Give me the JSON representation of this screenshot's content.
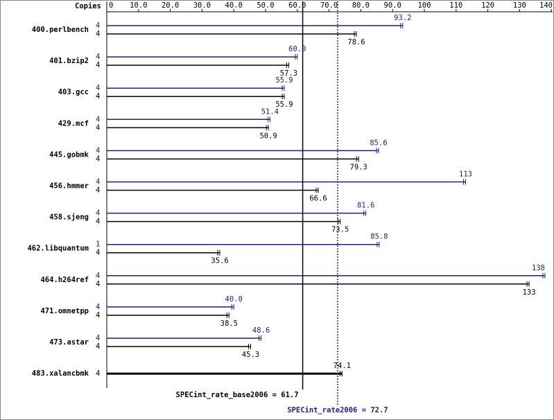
{
  "chart_data": {
    "type": "bar",
    "orientation": "horizontal",
    "copies_label": "Copies",
    "categories": [
      "400.perlbench",
      "401.bzip2",
      "403.gcc",
      "429.mcf",
      "445.gobmk",
      "456.hmmer",
      "458.sjeng",
      "462.libquantum",
      "464.h264ref",
      "471.omnetpp",
      "473.astar",
      "483.xalancbmk"
    ],
    "series": [
      {
        "color": "#1c1c8c",
        "copies": [
          4,
          4,
          4,
          4,
          4,
          4,
          4,
          1,
          4,
          4,
          4,
          null
        ],
        "values": [
          93.2,
          60.0,
          55.9,
          51.4,
          85.6,
          113,
          81.6,
          85.8,
          138,
          40.0,
          48.6,
          null
        ],
        "value_labels": [
          "93.2",
          "60.0",
          "55.9",
          "51.4",
          "85.6",
          "113",
          "81.6",
          "85.8",
          "138",
          "40.0",
          "48.6",
          null
        ]
      },
      {
        "color": "#000000",
        "copies": [
          4,
          4,
          4,
          4,
          4,
          4,
          4,
          4,
          4,
          4,
          4,
          4
        ],
        "values": [
          78.6,
          57.3,
          55.9,
          50.9,
          79.3,
          66.6,
          73.5,
          35.6,
          133,
          38.5,
          45.3,
          74.1
        ],
        "value_labels": [
          "78.6",
          "57.3",
          "55.9",
          "50.9",
          "79.3",
          "66.6",
          "73.5",
          "35.6",
          "133",
          "38.5",
          "45.3",
          "74.1"
        ]
      }
    ],
    "xlim": [
      0,
      138
    ],
    "xticks": [
      0,
      {
        "value": 10,
        "label": "10.0"
      },
      {
        "value": 20,
        "label": "20.0"
      },
      {
        "value": 30,
        "label": "30.0"
      },
      {
        "value": 40,
        "label": "40.0"
      },
      {
        "value": 50,
        "label": "50.0"
      },
      {
        "value": 60,
        "label": "60.0"
      },
      {
        "value": 70,
        "label": "70.0"
      },
      {
        "value": 80,
        "label": "80.0"
      },
      {
        "value": 90,
        "label": "90.0"
      },
      100,
      110,
      120,
      130,
      140
    ],
    "reference_lines": [
      {
        "text": "SPECint_rate_base2006 = 61.7",
        "value": 61.7,
        "color": "#000000",
        "style": "solid"
      },
      {
        "text": "SPECint_rate2006 = 72.7",
        "value": 72.7,
        "color": "#1c1c8c",
        "style": "dotted"
      }
    ]
  }
}
